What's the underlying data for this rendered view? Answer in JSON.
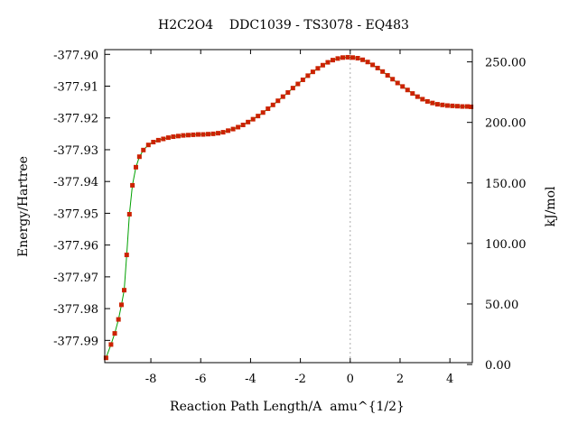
{
  "chart_data": {
    "type": "line",
    "title": "H2C2O4    DDC1039 - TS3078 - EQ483",
    "xlabel": "Reaction Path Length/A  amu^{1/2}",
    "ylabel_left": "Energy/Hartree",
    "ylabel_right": "kJ/mol",
    "xlim": [
      -9.85,
      4.9
    ],
    "ylim": [
      -377.997,
      -377.8985
    ],
    "x_ticks": [
      -8,
      -6,
      -4,
      -2,
      0,
      2,
      4
    ],
    "x_tick_labels": [
      "-8",
      "-6",
      "-4",
      "-2",
      "0",
      "2",
      "4"
    ],
    "y_ticks": [
      -377.9,
      -377.91,
      -377.92,
      -377.93,
      -377.94,
      -377.95,
      -377.96,
      -377.97,
      -377.98,
      -377.99
    ],
    "y_tick_labels": [
      "-377.90",
      "-377.91",
      "-377.92",
      "-377.93",
      "-377.94",
      "-377.95",
      "-377.96",
      "-377.97",
      "-377.98",
      "-377.99"
    ],
    "y2_ref_energy": -377.99758,
    "y2_ticks": [
      0,
      50,
      100,
      150,
      200,
      250
    ],
    "y2_tick_labels": [
      "0.00",
      "50.00",
      "100.00",
      "150.00",
      "200.00",
      "250.00"
    ],
    "ts_marker_x": 0.0,
    "colors": {
      "line": "#00a000",
      "marker": "#cc2200",
      "ts_line": "#aaaaaa",
      "axes": "#000000"
    },
    "series": [
      {
        "x": [
          -9.8,
          -9.6,
          -9.45,
          -9.3,
          -9.18,
          -9.07,
          -8.97,
          -8.86,
          -8.74,
          -8.6,
          -8.46,
          -8.3,
          -8.1,
          -7.9,
          -7.7,
          -7.5,
          -7.3,
          -7.1,
          -6.9,
          -6.7,
          -6.5,
          -6.3,
          -6.1,
          -5.9,
          -5.7,
          -5.5,
          -5.3,
          -5.1,
          -4.9,
          -4.7,
          -4.5,
          -4.3,
          -4.1,
          -3.9,
          -3.7,
          -3.5,
          -3.3,
          -3.1,
          -2.9,
          -2.7,
          -2.5,
          -2.3,
          -2.1,
          -1.9,
          -1.7,
          -1.5,
          -1.3,
          -1.1,
          -0.9,
          -0.7,
          -0.5,
          -0.3,
          -0.1,
          0.1,
          0.3,
          0.5,
          0.7,
          0.9,
          1.1,
          1.3,
          1.5,
          1.7,
          1.9,
          2.1,
          2.3,
          2.5,
          2.7,
          2.9,
          3.1,
          3.3,
          3.5,
          3.7,
          3.9,
          4.1,
          4.3,
          4.5,
          4.7,
          4.85
        ],
        "y": [
          -377.9955,
          -377.9913,
          -377.9878,
          -377.9834,
          -377.9788,
          -377.9742,
          -377.9631,
          -377.9503,
          -377.9412,
          -377.9355,
          -377.9322,
          -377.9301,
          -377.9285,
          -377.9276,
          -377.927,
          -377.9266,
          -377.9262,
          -377.9259,
          -377.9257,
          -377.9255,
          -377.9254,
          -377.9253,
          -377.9252,
          -377.9252,
          -377.9251,
          -377.925,
          -377.9248,
          -377.9245,
          -377.924,
          -377.9235,
          -377.9229,
          -377.9222,
          -377.9213,
          -377.9204,
          -377.9194,
          -377.9183,
          -377.9171,
          -377.9159,
          -377.9146,
          -377.9133,
          -377.912,
          -377.9106,
          -377.9093,
          -377.908,
          -377.9067,
          -377.9055,
          -377.9044,
          -377.9034,
          -377.9025,
          -377.9018,
          -377.9013,
          -377.901,
          -377.9009,
          -377.901,
          -377.9012,
          -377.9017,
          -377.9024,
          -377.9033,
          -377.9043,
          -377.9054,
          -377.9066,
          -377.9078,
          -377.909,
          -377.9101,
          -377.9112,
          -377.9123,
          -377.9133,
          -377.9141,
          -377.9148,
          -377.9153,
          -377.9157,
          -377.9159,
          -377.9161,
          -377.9162,
          -377.9163,
          -377.9164,
          -377.9164,
          -377.9165
        ]
      }
    ]
  }
}
